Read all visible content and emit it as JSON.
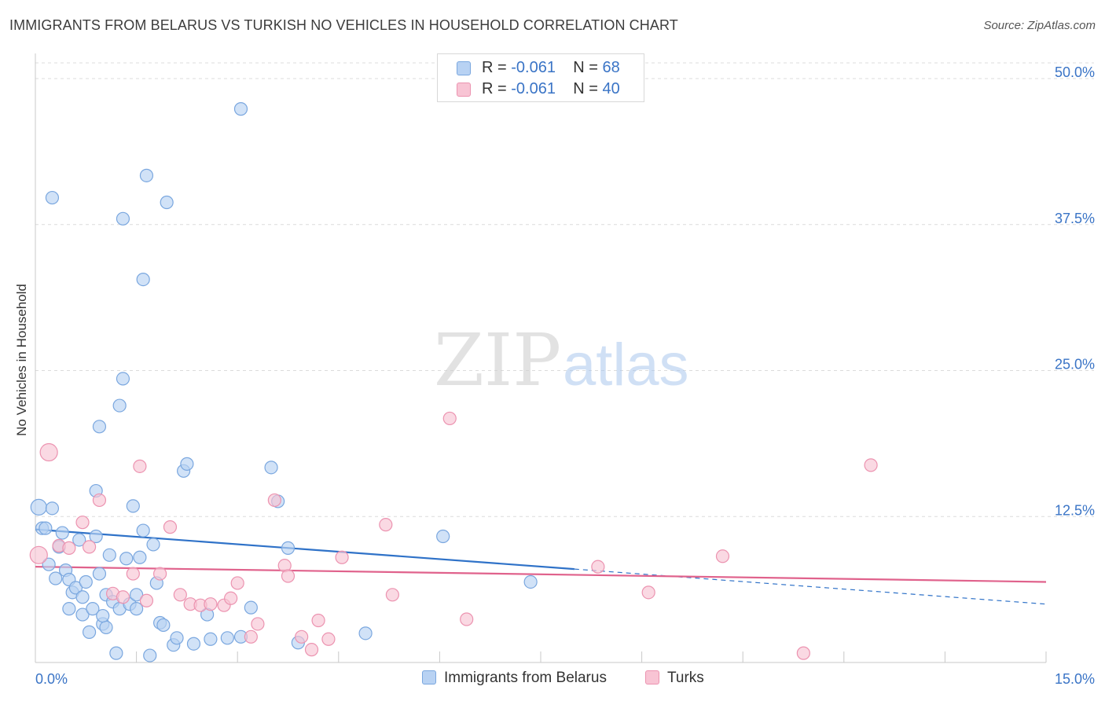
{
  "title": "IMMIGRANTS FROM BELARUS VS TURKISH NO VEHICLES IN HOUSEHOLD CORRELATION CHART",
  "source": "Source: ZipAtlas.com",
  "watermark": {
    "zip": "ZIP",
    "atlas": "atlas"
  },
  "legend": {
    "r_label": "R =",
    "n_label": "N =",
    "rows": [
      {
        "r": "-0.061",
        "n": "68"
      },
      {
        "r": "-0.061",
        "n": "40"
      }
    ]
  },
  "colors": {
    "blue_fill": "#b8d2f3",
    "blue_stroke": "#7aa7df",
    "blue_line": "#2f72c8",
    "pink_fill": "#f8c4d4",
    "pink_stroke": "#ec93b0",
    "pink_line": "#e0628c",
    "axis_text": "#3a74c6",
    "grid": "#dcdcdc"
  },
  "chart_data": {
    "type": "scatter",
    "title": "IMMIGRANTS FROM BELARUS VS TURKISH NO VEHICLES IN HOUSEHOLD CORRELATION CHART",
    "xlabel": "",
    "ylabel": "No Vehicles in Household",
    "xlim": [
      0,
      15
    ],
    "ylim": [
      0,
      50
    ],
    "x_tick_labels": [
      "0.0%",
      "15.0%"
    ],
    "y_tick_labels": [
      "12.5%",
      "25.0%",
      "37.5%",
      "50.0%"
    ],
    "y_ticks": [
      12.5,
      25.0,
      37.5,
      50.0
    ],
    "grid": true,
    "legend_placement": "bottom-center",
    "series": [
      {
        "name": "Immigrants from Belarus",
        "color": "#b8d2f3",
        "points": [
          [
            0.05,
            13.3
          ],
          [
            0.1,
            11.5
          ],
          [
            0.15,
            11.5
          ],
          [
            0.2,
            8.4
          ],
          [
            0.25,
            13.2
          ],
          [
            0.3,
            7.2
          ],
          [
            0.35,
            9.9
          ],
          [
            0.4,
            11.1
          ],
          [
            0.45,
            7.9
          ],
          [
            0.5,
            4.6
          ],
          [
            0.5,
            7.1
          ],
          [
            0.55,
            6.0
          ],
          [
            0.6,
            6.4
          ],
          [
            0.65,
            10.5
          ],
          [
            0.7,
            5.6
          ],
          [
            0.7,
            4.1
          ],
          [
            0.75,
            6.9
          ],
          [
            0.8,
            2.6
          ],
          [
            0.85,
            4.6
          ],
          [
            0.9,
            10.8
          ],
          [
            0.9,
            14.7
          ],
          [
            0.95,
            7.6
          ],
          [
            0.95,
            20.2
          ],
          [
            1.0,
            3.3
          ],
          [
            1.05,
            3.0
          ],
          [
            1.05,
            5.8
          ],
          [
            1.1,
            9.2
          ],
          [
            1.15,
            5.2
          ],
          [
            1.2,
            0.8
          ],
          [
            1.25,
            4.6
          ],
          [
            1.25,
            22.0
          ],
          [
            1.3,
            24.3
          ],
          [
            1.35,
            8.9
          ],
          [
            1.4,
            5.0
          ],
          [
            1.45,
            13.4
          ],
          [
            1.5,
            5.8
          ],
          [
            1.5,
            4.6
          ],
          [
            1.55,
            9.0
          ],
          [
            1.6,
            11.3
          ],
          [
            1.6,
            32.8
          ],
          [
            1.65,
            41.7
          ],
          [
            1.7,
            0.6
          ],
          [
            1.75,
            10.1
          ],
          [
            1.8,
            6.8
          ],
          [
            1.85,
            3.4
          ],
          [
            1.9,
            3.2
          ],
          [
            1.95,
            39.4
          ],
          [
            2.05,
            1.5
          ],
          [
            2.1,
            2.1
          ],
          [
            2.2,
            16.4
          ],
          [
            2.25,
            17.0
          ],
          [
            2.35,
            1.6
          ],
          [
            2.55,
            4.1
          ],
          [
            2.6,
            2.0
          ],
          [
            2.85,
            2.1
          ],
          [
            3.05,
            2.2
          ],
          [
            3.2,
            4.7
          ],
          [
            3.5,
            16.7
          ],
          [
            3.6,
            13.8
          ],
          [
            3.75,
            9.8
          ],
          [
            3.9,
            1.7
          ],
          [
            4.9,
            2.5
          ],
          [
            6.05,
            10.8
          ],
          [
            7.35,
            6.9
          ],
          [
            3.05,
            47.4
          ],
          [
            0.25,
            39.8
          ],
          [
            1.3,
            38.0
          ],
          [
            1.0,
            4.0
          ]
        ]
      },
      {
        "name": "Turks",
        "color": "#f8c4d4",
        "points": [
          [
            0.05,
            9.2
          ],
          [
            0.2,
            18.0
          ],
          [
            0.35,
            10.0
          ],
          [
            0.5,
            9.8
          ],
          [
            0.7,
            12.0
          ],
          [
            0.8,
            9.9
          ],
          [
            0.95,
            13.9
          ],
          [
            1.15,
            5.9
          ],
          [
            1.3,
            5.6
          ],
          [
            1.45,
            7.6
          ],
          [
            1.55,
            16.8
          ],
          [
            1.65,
            5.3
          ],
          [
            1.85,
            7.6
          ],
          [
            2.0,
            11.6
          ],
          [
            2.15,
            5.8
          ],
          [
            2.3,
            5.0
          ],
          [
            2.45,
            4.9
          ],
          [
            2.6,
            5.0
          ],
          [
            2.8,
            4.9
          ],
          [
            2.9,
            5.5
          ],
          [
            3.0,
            6.8
          ],
          [
            3.2,
            2.2
          ],
          [
            3.3,
            3.3
          ],
          [
            3.55,
            13.9
          ],
          [
            3.7,
            8.3
          ],
          [
            3.75,
            7.4
          ],
          [
            3.95,
            2.2
          ],
          [
            4.1,
            1.1
          ],
          [
            4.2,
            3.6
          ],
          [
            4.35,
            2.0
          ],
          [
            4.55,
            9.0
          ],
          [
            5.2,
            11.8
          ],
          [
            5.3,
            5.8
          ],
          [
            6.15,
            20.9
          ],
          [
            6.4,
            3.7
          ],
          [
            8.35,
            8.2
          ],
          [
            9.1,
            6.0
          ],
          [
            10.2,
            9.1
          ],
          [
            11.4,
            0.8
          ],
          [
            12.4,
            16.9
          ]
        ]
      }
    ],
    "trend_lines": [
      {
        "series": "Immigrants from Belarus",
        "x": [
          0,
          8.0
        ],
        "y": [
          11.4,
          8.0
        ],
        "dashed_extension": {
          "x": [
            8.0,
            15.0
          ],
          "y": [
            8.0,
            5.0
          ]
        }
      },
      {
        "series": "Turks",
        "x": [
          0,
          15.0
        ],
        "y": [
          8.2,
          6.9
        ]
      }
    ]
  }
}
